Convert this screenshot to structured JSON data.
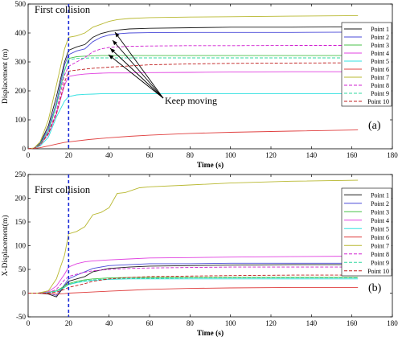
{
  "chart_data": [
    {
      "type": "line",
      "panel_label": "(a)",
      "xlabel": "Time (s)",
      "ylabel": "Displacement (m)",
      "xlim": [
        0,
        180
      ],
      "ylim": [
        0,
        500
      ],
      "xticks": [
        0,
        20,
        40,
        60,
        80,
        100,
        120,
        140,
        160,
        180
      ],
      "yticks": [
        0,
        100,
        200,
        300,
        400,
        500
      ],
      "grid": false,
      "legend_position": "right",
      "vline_x": 20,
      "annotations": [
        "First collision",
        "Keep moving"
      ],
      "series": [
        {
          "name": "Point 1",
          "color": "#1a1a1a",
          "dash": "solid",
          "x": [
            0,
            3,
            6,
            10,
            14,
            18,
            20,
            24,
            28,
            32,
            36,
            40,
            44,
            50,
            60,
            80,
            100,
            130,
            163
          ],
          "y": [
            0,
            2,
            20,
            80,
            180,
            300,
            340,
            352,
            360,
            385,
            398,
            405,
            410,
            414,
            416,
            418,
            420,
            420,
            421
          ]
        },
        {
          "name": "Point 2",
          "color": "#4a4ad8",
          "dash": "solid",
          "x": [
            0,
            3,
            6,
            10,
            14,
            18,
            20,
            24,
            28,
            32,
            36,
            40,
            44,
            50,
            60,
            80,
            100,
            130,
            163
          ],
          "y": [
            0,
            2,
            18,
            70,
            160,
            290,
            325,
            338,
            345,
            370,
            385,
            393,
            397,
            400,
            401,
            402,
            402,
            402,
            403
          ]
        },
        {
          "name": "Point 3",
          "color": "#49c249",
          "dash": "solid",
          "x": [
            0,
            3,
            6,
            10,
            14,
            18,
            20,
            24,
            28,
            32,
            36,
            40,
            50,
            60,
            80,
            100,
            130,
            163
          ],
          "y": [
            0,
            2,
            16,
            60,
            150,
            270,
            312,
            318,
            320,
            321,
            322,
            322,
            322,
            322,
            322,
            322,
            322,
            322
          ]
        },
        {
          "name": "Point 4",
          "color": "#e040e0",
          "dash": "solid",
          "x": [
            0,
            3,
            6,
            10,
            14,
            18,
            20,
            24,
            28,
            32,
            36,
            40,
            50,
            60,
            80,
            100,
            130,
            163
          ],
          "y": [
            0,
            2,
            14,
            50,
            120,
            220,
            250,
            255,
            258,
            260,
            261,
            262,
            262,
            263,
            264,
            265,
            266,
            266
          ]
        },
        {
          "name": "Point 5",
          "color": "#30e0e0",
          "dash": "solid",
          "x": [
            0,
            3,
            6,
            10,
            14,
            18,
            20,
            24,
            28,
            32,
            36,
            40,
            50,
            60,
            80,
            100,
            130,
            163
          ],
          "y": [
            0,
            2,
            10,
            40,
            110,
            165,
            180,
            186,
            188,
            189,
            190,
            190,
            190,
            190,
            190,
            190,
            190,
            190
          ]
        },
        {
          "name": "Point 6",
          "color": "#e04040",
          "dash": "solid",
          "x": [
            0,
            3,
            6,
            10,
            14,
            18,
            20,
            30,
            40,
            50,
            60,
            80,
            100,
            130,
            163
          ],
          "y": [
            0,
            1,
            4,
            10,
            16,
            22,
            24,
            32,
            38,
            43,
            47,
            53,
            57,
            61,
            65
          ]
        },
        {
          "name": "Point 7",
          "color": "#b8b830",
          "dash": "solid",
          "x": [
            0,
            3,
            6,
            10,
            14,
            18,
            20,
            24,
            28,
            32,
            36,
            40,
            44,
            50,
            60,
            80,
            100,
            130,
            163
          ],
          "y": [
            0,
            3,
            25,
            100,
            220,
            345,
            385,
            390,
            400,
            420,
            430,
            440,
            446,
            450,
            453,
            455,
            456,
            458,
            460
          ]
        },
        {
          "name": "Point 8",
          "color": "#d020d0",
          "dash": "dashed",
          "x": [
            0,
            3,
            6,
            10,
            14,
            18,
            20,
            24,
            28,
            32,
            36,
            40,
            44,
            50,
            60,
            80,
            100,
            130,
            163
          ],
          "y": [
            0,
            2,
            15,
            55,
            130,
            255,
            285,
            300,
            315,
            335,
            345,
            350,
            352,
            354,
            355,
            356,
            356,
            357,
            357
          ]
        },
        {
          "name": "Point 9",
          "color": "#30d8a0",
          "dash": "dashed",
          "x": [
            0,
            3,
            6,
            10,
            14,
            18,
            20,
            24,
            28,
            32,
            36,
            40,
            50,
            60,
            80,
            100,
            130,
            163
          ],
          "y": [
            0,
            2,
            16,
            62,
            150,
            270,
            308,
            312,
            313,
            314,
            314,
            314,
            314,
            314,
            314,
            314,
            314,
            314
          ]
        },
        {
          "name": "Point 10",
          "color": "#c02020",
          "dash": "dashed",
          "x": [
            0,
            3,
            6,
            10,
            14,
            18,
            20,
            24,
            28,
            32,
            36,
            40,
            50,
            60,
            80,
            100,
            130,
            163
          ],
          "y": [
            0,
            2,
            14,
            52,
            120,
            230,
            268,
            272,
            275,
            278,
            280,
            282,
            286,
            290,
            293,
            295,
            296,
            297
          ]
        }
      ]
    },
    {
      "type": "line",
      "panel_label": "(b)",
      "xlabel": "Time (s)",
      "ylabel": "X-Displacement(m)",
      "xlim": [
        0,
        180
      ],
      "ylim": [
        -50,
        250
      ],
      "xticks": [
        0,
        20,
        40,
        60,
        80,
        100,
        120,
        140,
        160,
        180
      ],
      "yticks": [
        -50,
        0,
        50,
        100,
        150,
        200,
        250
      ],
      "grid": false,
      "legend_position": "right",
      "vline_x": 20,
      "annotations": [
        "First collision"
      ],
      "series": [
        {
          "name": "Point 1",
          "color": "#1a1a1a",
          "dash": "solid",
          "x": [
            0,
            5,
            10,
            14,
            18,
            20,
            24,
            28,
            32,
            40,
            50,
            60,
            80,
            100,
            130,
            163
          ],
          "y": [
            0,
            0,
            -2,
            -8,
            15,
            25,
            30,
            35,
            45,
            52,
            55,
            57,
            58,
            59,
            60,
            60
          ]
        },
        {
          "name": "Point 2",
          "color": "#4a4ad8",
          "dash": "solid",
          "x": [
            0,
            5,
            10,
            14,
            18,
            20,
            24,
            28,
            32,
            40,
            50,
            60,
            80,
            100,
            130,
            163
          ],
          "y": [
            0,
            0,
            0,
            -5,
            18,
            30,
            38,
            45,
            52,
            58,
            60,
            62,
            62,
            63,
            63,
            63
          ]
        },
        {
          "name": "Point 3",
          "color": "#49c249",
          "dash": "solid",
          "x": [
            0,
            5,
            10,
            14,
            18,
            20,
            24,
            28,
            32,
            40,
            50,
            60,
            80,
            100,
            130,
            163
          ],
          "y": [
            0,
            0,
            2,
            5,
            15,
            20,
            25,
            28,
            30,
            32,
            33,
            33,
            33,
            33,
            33,
            33
          ]
        },
        {
          "name": "Point 4",
          "color": "#e040e0",
          "dash": "solid",
          "x": [
            0,
            5,
            10,
            14,
            18,
            20,
            24,
            28,
            32,
            40,
            50,
            60,
            80,
            100,
            130,
            163
          ],
          "y": [
            0,
            0,
            3,
            15,
            40,
            55,
            62,
            66,
            68,
            70,
            72,
            74,
            75,
            76,
            77,
            78
          ]
        },
        {
          "name": "Point 5",
          "color": "#30e0e0",
          "dash": "solid",
          "x": [
            0,
            5,
            10,
            14,
            18,
            20,
            24,
            28,
            32,
            40,
            50,
            60,
            80,
            100,
            130,
            163
          ],
          "y": [
            0,
            0,
            1,
            4,
            12,
            18,
            22,
            25,
            27,
            29,
            30,
            30,
            30,
            30,
            30,
            30
          ]
        },
        {
          "name": "Point 6",
          "color": "#e04040",
          "dash": "solid",
          "x": [
            0,
            5,
            10,
            14,
            18,
            20,
            30,
            40,
            50,
            60,
            80,
            100,
            130,
            163
          ],
          "y": [
            0,
            0,
            -1,
            -2,
            -1,
            0,
            2,
            4,
            6,
            8,
            10,
            11,
            12,
            12
          ]
        },
        {
          "name": "Point 7",
          "color": "#b8b830",
          "dash": "solid",
          "x": [
            0,
            5,
            10,
            14,
            18,
            20,
            24,
            28,
            32,
            36,
            40,
            44,
            48,
            55,
            60,
            80,
            100,
            130,
            163
          ],
          "y": [
            0,
            0,
            5,
            30,
            80,
            125,
            130,
            140,
            165,
            170,
            180,
            210,
            212,
            222,
            224,
            228,
            232,
            236,
            238
          ]
        },
        {
          "name": "Point 8",
          "color": "#d020d0",
          "dash": "dashed",
          "x": [
            0,
            5,
            10,
            14,
            18,
            20,
            24,
            28,
            32,
            40,
            50,
            60,
            80,
            100,
            130,
            163
          ],
          "y": [
            0,
            0,
            1,
            8,
            28,
            35,
            40,
            44,
            47,
            50,
            52,
            53,
            54,
            55,
            55,
            55
          ]
        },
        {
          "name": "Point 9",
          "color": "#30d8a0",
          "dash": "dashed",
          "x": [
            0,
            5,
            10,
            14,
            18,
            20,
            24,
            28,
            32,
            40,
            50,
            60,
            80,
            100,
            130,
            163
          ],
          "y": [
            0,
            0,
            1,
            4,
            12,
            18,
            23,
            26,
            28,
            30,
            31,
            31,
            32,
            32,
            32,
            32
          ]
        },
        {
          "name": "Point 10",
          "color": "#c02020",
          "dash": "dashed",
          "x": [
            0,
            5,
            10,
            14,
            18,
            20,
            24,
            28,
            32,
            40,
            50,
            60,
            80,
            100,
            130,
            163
          ],
          "y": [
            0,
            0,
            0,
            2,
            8,
            12,
            16,
            20,
            25,
            30,
            33,
            35,
            36,
            37,
            38,
            38
          ]
        }
      ]
    }
  ]
}
